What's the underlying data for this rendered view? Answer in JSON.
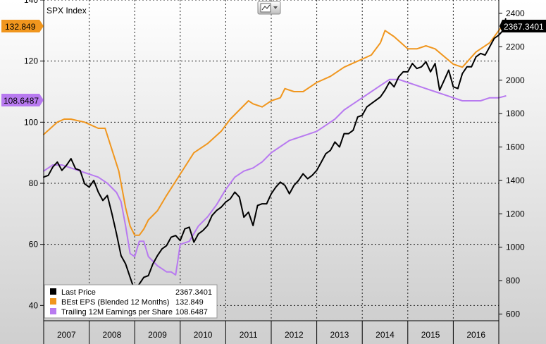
{
  "chart_data": {
    "type": "line",
    "title": "SPX Index",
    "x_labels": [
      "2007",
      "2008",
      "2009",
      "2010",
      "2011",
      "2012",
      "2013",
      "2014",
      "2015",
      "2016"
    ],
    "xlim": [
      2007.0,
      2017.0
    ],
    "left_axis": {
      "ylim": [
        35,
        140
      ],
      "ticks": [
        40,
        60,
        80,
        100,
        120,
        140
      ]
    },
    "right_axis": {
      "ylim": [
        560,
        2480
      ],
      "ticks": [
        600,
        800,
        1000,
        1200,
        1400,
        1600,
        1800,
        2000,
        2200,
        2400
      ]
    },
    "series": [
      {
        "name": "Last Price",
        "axis": "right",
        "color": "#000000",
        "last_value": "2367.3401",
        "x": [
          2007.0,
          2007.1,
          2007.2,
          2007.3,
          2007.4,
          2007.5,
          2007.6,
          2007.7,
          2007.8,
          2007.9,
          2008.0,
          2008.1,
          2008.2,
          2008.3,
          2008.4,
          2008.5,
          2008.6,
          2008.7,
          2008.8,
          2008.9,
          2009.0,
          2009.1,
          2009.2,
          2009.3,
          2009.4,
          2009.5,
          2009.6,
          2009.7,
          2009.8,
          2009.9,
          2010.0,
          2010.1,
          2010.2,
          2010.3,
          2010.4,
          2010.5,
          2010.6,
          2010.7,
          2010.8,
          2010.9,
          2011.0,
          2011.1,
          2011.2,
          2011.3,
          2011.4,
          2011.5,
          2011.6,
          2011.7,
          2011.8,
          2011.9,
          2012.0,
          2012.1,
          2012.2,
          2012.3,
          2012.4,
          2012.5,
          2012.6,
          2012.7,
          2012.8,
          2012.9,
          2013.0,
          2013.1,
          2013.2,
          2013.3,
          2013.4,
          2013.5,
          2013.6,
          2013.7,
          2013.8,
          2013.9,
          2014.0,
          2014.1,
          2014.2,
          2014.3,
          2014.4,
          2014.5,
          2014.6,
          2014.7,
          2014.8,
          2014.9,
          2015.0,
          2015.1,
          2015.2,
          2015.3,
          2015.4,
          2015.5,
          2015.6,
          2015.7,
          2015.8,
          2015.9,
          2016.0,
          2016.1,
          2016.2,
          2016.3,
          2016.4,
          2016.5,
          2016.6,
          2016.7,
          2016.8,
          2016.9,
          2017.0,
          2017.1,
          2017.15
        ],
        "values": [
          1420,
          1430,
          1480,
          1510,
          1460,
          1490,
          1530,
          1470,
          1460,
          1380,
          1360,
          1400,
          1330,
          1280,
          1310,
          1200,
          1080,
          950,
          900,
          820,
          740,
          780,
          820,
          830,
          900,
          950,
          990,
          1010,
          1060,
          1070,
          1040,
          1110,
          1120,
          1030,
          1080,
          1100,
          1130,
          1190,
          1220,
          1240,
          1270,
          1290,
          1330,
          1300,
          1180,
          1210,
          1130,
          1250,
          1260,
          1260,
          1320,
          1360,
          1390,
          1370,
          1320,
          1370,
          1400,
          1440,
          1410,
          1430,
          1460,
          1510,
          1560,
          1580,
          1630,
          1600,
          1680,
          1680,
          1700,
          1780,
          1790,
          1840,
          1860,
          1880,
          1900,
          1940,
          1990,
          1960,
          2020,
          2050,
          2050,
          2100,
          2070,
          2080,
          2110,
          2050,
          2100,
          1940,
          2000,
          2060,
          1960,
          1950,
          2040,
          2080,
          2080,
          2140,
          2160,
          2150,
          2200,
          2250,
          2270,
          2300,
          2367
        ]
      },
      {
        "name": "BEst EPS (Blended 12 Months)",
        "axis": "left",
        "color": "#F0961E",
        "last_value": "132.849",
        "x": [
          2007.0,
          2007.15,
          2007.3,
          2007.45,
          2007.6,
          2007.75,
          2007.9,
          2008.05,
          2008.2,
          2008.35,
          2008.5,
          2008.65,
          2008.8,
          2008.9,
          2009.0,
          2009.1,
          2009.2,
          2009.3,
          2009.5,
          2009.7,
          2010.0,
          2010.3,
          2010.6,
          2010.9,
          2011.1,
          2011.3,
          2011.5,
          2011.6,
          2011.8,
          2012.0,
          2012.2,
          2012.3,
          2012.5,
          2012.7,
          2013.0,
          2013.3,
          2013.6,
          2013.9,
          2014.2,
          2014.4,
          2014.5,
          2014.7,
          2015.0,
          2015.2,
          2015.4,
          2015.6,
          2016.0,
          2016.2,
          2016.5,
          2016.8,
          2017.0,
          2017.15
        ],
        "values": [
          96,
          98,
          100,
          101,
          101,
          100.5,
          100,
          99,
          98,
          98,
          91,
          84,
          72,
          66,
          63,
          63,
          65,
          68,
          71,
          76,
          83,
          90,
          93,
          97,
          101,
          104,
          107,
          106,
          105,
          107,
          108,
          111,
          110,
          110,
          113,
          115,
          118,
          120,
          122,
          126,
          130,
          128,
          124,
          124,
          125,
          124,
          119,
          118,
          123,
          126,
          130,
          133
        ]
      },
      {
        "name": "Trailing 12M Earnings per Share",
        "axis": "left",
        "color": "#B87AF0",
        "last_value": "108.6487",
        "x": [
          2007.0,
          2007.2,
          2007.4,
          2007.6,
          2007.8,
          2008.0,
          2008.2,
          2008.3,
          2008.4,
          2008.6,
          2008.7,
          2008.8,
          2008.9,
          2009.0,
          2009.1,
          2009.2,
          2009.3,
          2009.5,
          2009.6,
          2009.7,
          2009.8,
          2009.9,
          2009.95,
          2010.0,
          2010.2,
          2010.4,
          2010.6,
          2010.8,
          2011.0,
          2011.2,
          2011.4,
          2011.6,
          2011.8,
          2012.0,
          2012.2,
          2012.4,
          2012.6,
          2012.8,
          2013.0,
          2013.2,
          2013.4,
          2013.6,
          2013.8,
          2014.0,
          2014.2,
          2014.4,
          2014.6,
          2014.8,
          2015.0,
          2015.2,
          2015.4,
          2015.6,
          2015.8,
          2016.0,
          2016.2,
          2016.4,
          2016.6,
          2016.8,
          2017.0,
          2017.15
        ],
        "values": [
          84,
          86,
          86,
          85,
          84,
          83,
          82,
          81,
          80,
          77,
          74,
          66,
          57,
          56,
          61,
          61,
          56,
          53,
          52,
          51,
          51,
          50,
          55,
          60,
          61,
          66,
          69,
          73,
          78,
          82,
          84,
          85,
          87,
          90,
          92,
          94,
          95,
          96,
          97,
          99,
          101,
          104,
          106,
          108,
          110,
          112,
          114,
          114,
          113,
          112,
          111,
          110,
          109,
          108,
          107,
          107,
          107,
          108,
          108,
          108.6
        ]
      }
    ],
    "legend": "bottom-left",
    "grid": true
  },
  "value_tags": {
    "left_orange": "132.849",
    "left_purple": "108.6487",
    "right_black": "2367.3401"
  }
}
